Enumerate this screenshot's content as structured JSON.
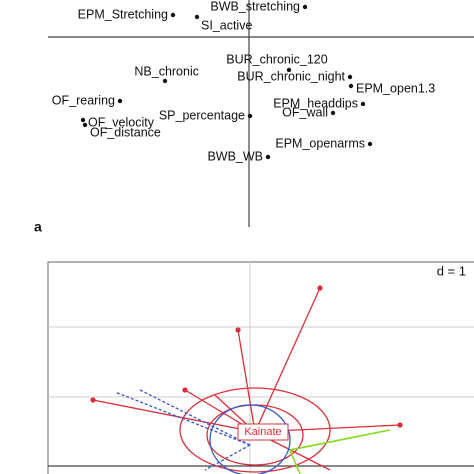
{
  "chart_data": [
    {
      "type": "scatter",
      "panel_label": "a",
      "labels": [
        "EPM_Stretching",
        "SI_active",
        "BWB_stretching",
        "BUR_chronic_120",
        "BUR_chronic_night",
        "NB_chronic",
        "EPM_open1.3",
        "EPM_headdips",
        "OF_rearing",
        "OF_velocity",
        "OF_distance",
        "SP_percentage",
        "OF_wall",
        "BWB_WB",
        "EPM_openarms"
      ],
      "x": [
        -0.76,
        -0.52,
        0.56,
        0.4,
        1.01,
        -0.84,
        1.02,
        1.14,
        -1.29,
        -1.66,
        -1.64,
        0.01,
        0.84,
        0.19,
        1.21
      ],
      "values": [
        0.22,
        0.2,
        0.3,
        -0.33,
        -0.4,
        -0.44,
        -0.49,
        -0.67,
        -0.64,
        -0.83,
        -0.88,
        -0.79,
        -0.76,
        -1.2,
        -1.07
      ],
      "xlim": [
        -2.01,
        2.25
      ],
      "ylim": [
        -1.9,
        0.37
      ],
      "color": "#111111"
    },
    {
      "type": "star",
      "scale_label": "d = 1",
      "group_label": "Kainate"
    }
  ]
}
